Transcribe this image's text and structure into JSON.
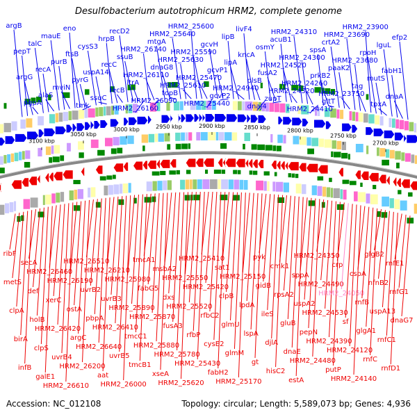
{
  "title": "Desulfobacterium autotrophicum HRM2, complete genome",
  "footer": {
    "accession": "Accession: NC_012108",
    "summary": "Topology: circular; Length: 5,589,073 bp; Genes: 4,936"
  },
  "colors": {
    "forward": "#0000ee",
    "reverse": "#ee0000",
    "highlight": "#ff88cc",
    "backbone": "#888888",
    "tick": "#008800"
  },
  "scale_labels": [
    "3100 kbp",
    "3050 kbp",
    "3000 kbp",
    "2950 kbp",
    "2900 kbp",
    "2850 kbp",
    "2800 kbp",
    "2750 kbp",
    "2700 kbp"
  ],
  "forward_genes": [
    "argB",
    "pepT",
    "argG",
    "pgpA",
    "talC",
    "recA",
    "alaS",
    "mauE",
    "purB",
    "mviN",
    "eno",
    "ftsB",
    "pyrG",
    "tmk",
    "cysS3",
    "uspA14",
    "ssuC",
    "hrpB",
    "recC",
    "recB",
    "recD2",
    "ssuB",
    "ltrA",
    "HRM2_26160",
    "HRM2_26140",
    "HRM2_26110",
    "HRM2_26090",
    "mtgA",
    "dnaG8",
    "topB",
    "HRM2_25640",
    "HRM2_25630",
    "HRM2_25610",
    "HRM2_25600",
    "HRM2_25590",
    "HRM2_25470",
    "HRM2_25440",
    "gcvH",
    "gcvP1",
    "gcvP2",
    "lipB",
    "lipA",
    "HRM2_24940",
    "livF4",
    "kncA",
    "plsB",
    "dnaJ4",
    "osmY",
    "fusA2",
    "zupT",
    "acuB1",
    "HRM2_24520",
    "HRM2_24320",
    "HRM2_24310",
    "HRM2_24300",
    "HRM2_24260",
    "HRM2_24410",
    "spsA",
    "prkB2",
    "gltT",
    "crtA2",
    "paaK2",
    "HRM2_23750",
    "HRM2_23690",
    "HRM2_23680",
    "tag",
    "HRM2_23900",
    "rpoH",
    "mutS",
    "tpxA",
    "lguL",
    "fabH1",
    "dnaA",
    "efp2"
  ],
  "reverse_genes": [
    "ribF",
    "metS",
    "clpA",
    "birA",
    "infB",
    "secA",
    "def",
    "holB",
    "clpS",
    "galE1",
    "HRM2_26460",
    "xerC",
    "HRM2_26420",
    "uvrB4",
    "HRM2_26610",
    "HRM2_26190",
    "ostA",
    "argC",
    "HRM2_26200",
    "HRM2_26510",
    "uvrB2",
    "pbpA",
    "HRM2_26640",
    "aat",
    "HRM2_26210",
    "uvrB3",
    "HRM2_26410",
    "uvrB5",
    "HRM2_26000",
    "HRM2_25980",
    "HRM2_25890",
    "tmcC1",
    "tmcB1",
    "tmcA1",
    "fabG5",
    "HRM2_25870",
    "HRM2_25880",
    "xseA",
    "msbA2",
    "dxs",
    "fusA3",
    "HRM2_25780",
    "HRM2_25620",
    "HRM2_25550",
    "HRM2_25520",
    "rfbP",
    "HRM2_25430",
    "HRM2_25410",
    "HRM2_25420",
    "rfbC2",
    "cysE2",
    "fabH2",
    "sat1",
    "clpB",
    "glmU",
    "glmM",
    "HRM2_25170",
    "HRM2_25150",
    "lpdA",
    "lspA",
    "gt",
    "pyk",
    "gidB",
    "ileS",
    "djlA",
    "hisC2",
    "cmk1",
    "rpsA2",
    "gluB",
    "dnaE",
    "estA",
    "sppA",
    "uspA2",
    "pepN",
    "HRM2_24480",
    "HRM2_24350",
    "HRM2_24490",
    "HRM2_24530",
    "HRM2_24390",
    "putP",
    "crp",
    "HRM2_24050",
    "sf",
    "HRM2_24120",
    "HRM2_24140",
    "cspA",
    "rnfB",
    "glgA1",
    "rnfC",
    "glgB2",
    "nfnB2",
    "uspA13",
    "rnfC1",
    "rnfD1",
    "rnfE1",
    "rnfG1",
    "dnaG7"
  ],
  "highlight_genes": [
    "HRM2_24050"
  ]
}
